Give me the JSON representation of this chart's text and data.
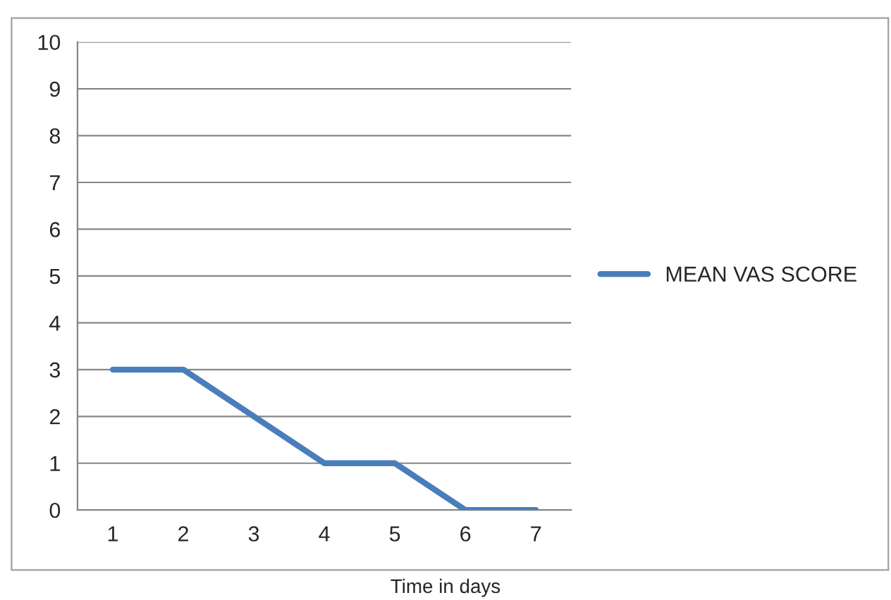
{
  "chart_data": {
    "type": "line",
    "xlabel": "Time in days",
    "categories": [
      "1",
      "2",
      "3",
      "4",
      "5",
      "6",
      "7"
    ],
    "series": [
      {
        "name": "MEAN VAS SCORE",
        "color": "#4a7ebb",
        "values": [
          3,
          3,
          2,
          1,
          1,
          0,
          0
        ]
      }
    ],
    "ylim": [
      0,
      10
    ],
    "yticks": [
      0,
      1,
      2,
      3,
      4,
      5,
      6,
      7,
      8,
      9,
      10
    ],
    "grid": "y",
    "legend": "right",
    "marker": "none",
    "line_style": "solid"
  }
}
